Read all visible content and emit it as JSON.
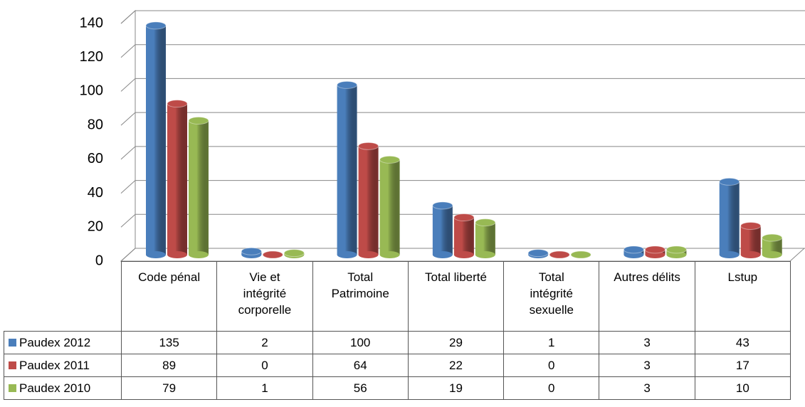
{
  "chart_data": {
    "type": "bar",
    "categories": [
      "Code pénal",
      "Vie et intégrité corporelle",
      "Total Patrimoine",
      "Total liberté",
      "Total intégrité sexuelle",
      "Autres délits",
      "Lstup"
    ],
    "series": [
      {
        "name": "Paudex 2012",
        "color": "#4a7ebb",
        "values": [
          135,
          2,
          100,
          29,
          1,
          3,
          43
        ]
      },
      {
        "name": "Paudex 2011",
        "color": "#be4b48",
        "values": [
          89,
          0,
          64,
          22,
          0,
          3,
          17
        ]
      },
      {
        "name": "Paudex 2010",
        "color": "#98b954",
        "values": [
          79,
          1,
          56,
          19,
          0,
          3,
          10
        ]
      }
    ],
    "ylim": [
      0,
      140
    ],
    "yticks": [
      0,
      20,
      40,
      60,
      80,
      100,
      120,
      140
    ],
    "grid": true
  }
}
